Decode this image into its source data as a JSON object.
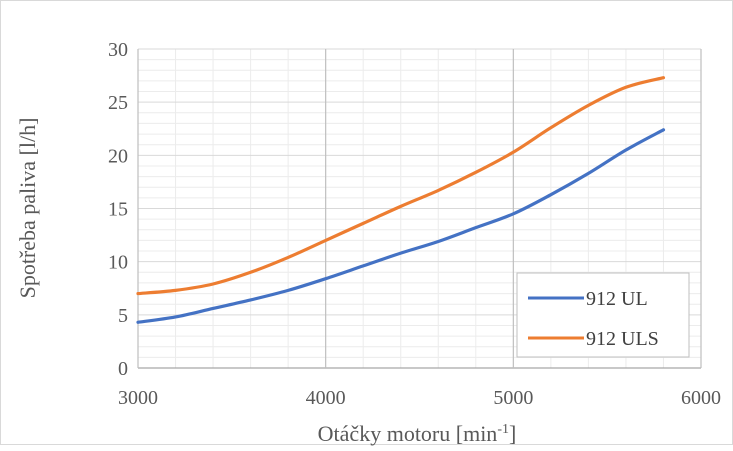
{
  "chart_data": {
    "type": "line",
    "title": "",
    "xlabel": "Otáčky motoru [min",
    "xlabel_sup": "-1",
    "xlabel_end": "]",
    "ylabel": "Spotřeba paliva [l/h]",
    "xlim": [
      3000,
      6000
    ],
    "ylim": [
      0,
      30
    ],
    "x_ticks": [
      3000,
      4000,
      5000,
      6000
    ],
    "y_ticks": [
      0,
      5,
      10,
      15,
      20,
      25,
      30
    ],
    "x_tick_labels": [
      "3000",
      "4000",
      "5000",
      "6000"
    ],
    "y_tick_labels": [
      "0",
      "5",
      "10",
      "15",
      "20",
      "25",
      "30"
    ],
    "grid": "major and minor",
    "legend": "bottom-right",
    "series": [
      {
        "name": "912 UL",
        "color": "#4472c4",
        "x": [
          3000,
          3200,
          3400,
          3600,
          3800,
          4000,
          4200,
          4400,
          4600,
          4800,
          5000,
          5200,
          5400,
          5600,
          5800
        ],
        "y": [
          4.3,
          4.8,
          5.6,
          6.4,
          7.3,
          8.4,
          9.6,
          10.8,
          11.9,
          13.2,
          14.5,
          16.3,
          18.3,
          20.5,
          22.4
        ]
      },
      {
        "name": "912 ULS",
        "color": "#ed7d31",
        "x": [
          3000,
          3200,
          3400,
          3600,
          3800,
          4000,
          4200,
          4400,
          4600,
          4800,
          5000,
          5200,
          5400,
          5600,
          5800
        ],
        "y": [
          7.0,
          7.3,
          7.9,
          9.0,
          10.4,
          12.0,
          13.6,
          15.2,
          16.7,
          18.4,
          20.3,
          22.6,
          24.7,
          26.4,
          27.3
        ]
      }
    ]
  }
}
